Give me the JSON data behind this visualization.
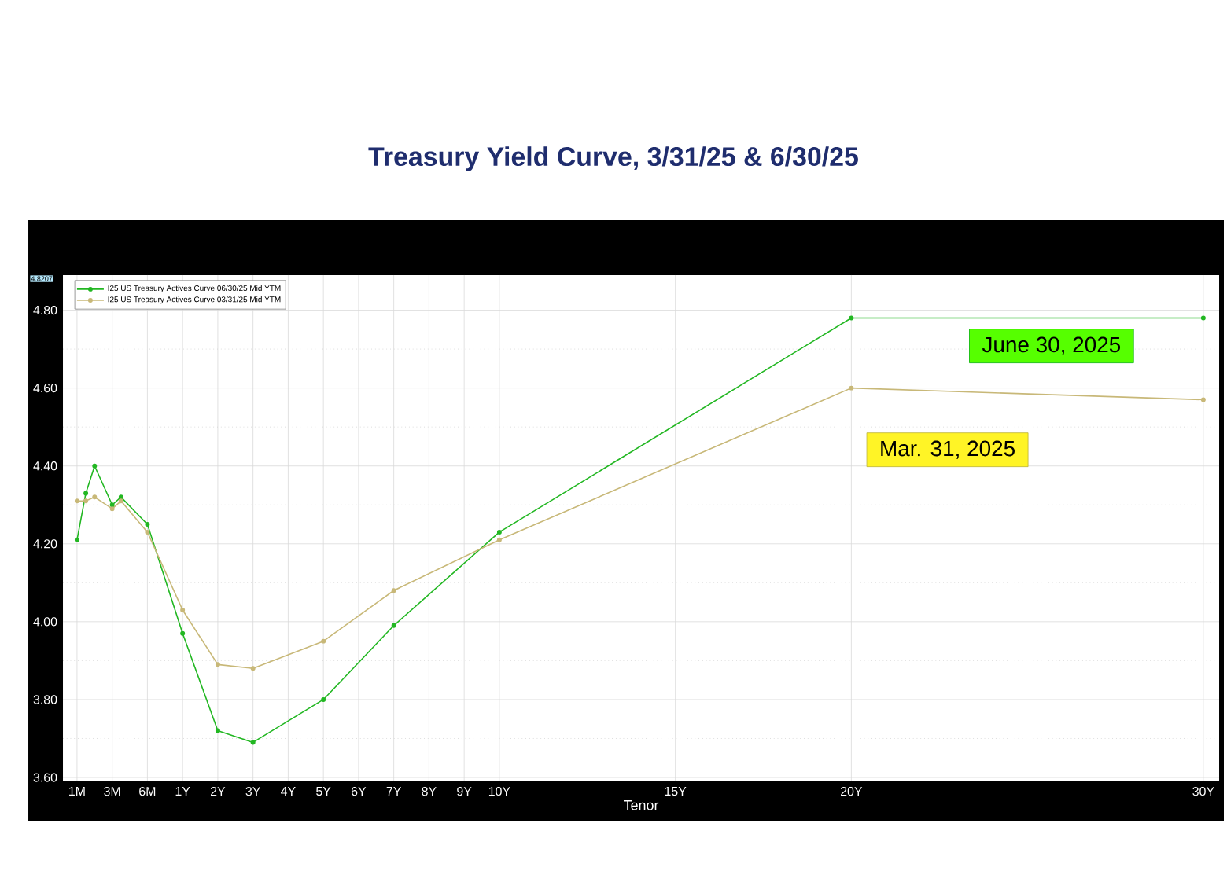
{
  "chart_data": {
    "type": "line",
    "title": "Treasury Yield Curve, 3/31/25 & 6/30/25",
    "xlabel": "Tenor",
    "categories": [
      "1M",
      null,
      null,
      null,
      "3M",
      null,
      null,
      null,
      "6M",
      null,
      null,
      null,
      "1Y",
      null,
      null,
      null,
      "2Y",
      null,
      null,
      null,
      "3Y",
      null,
      null,
      null,
      "4Y",
      null,
      null,
      null,
      "5Y",
      null,
      null,
      null,
      "6Y",
      null,
      null,
      null,
      "7Y",
      null,
      null,
      null,
      "8Y",
      null,
      null,
      null,
      "9Y",
      null,
      null,
      null,
      "10Y",
      null,
      null,
      null,
      null,
      null,
      null,
      null,
      null,
      null,
      null,
      null,
      null,
      null,
      null,
      null,
      null,
      null,
      null,
      null,
      "15Y",
      null,
      null,
      null,
      null,
      null,
      null,
      null,
      null,
      null,
      null,
      null,
      null,
      null,
      null,
      null,
      null,
      null,
      null,
      null,
      "20Y",
      null,
      null,
      null,
      null,
      null,
      null,
      null,
      null,
      null,
      null,
      null,
      null,
      null,
      null,
      null,
      null,
      null,
      null,
      null,
      null,
      null,
      null,
      null,
      null,
      null,
      null,
      null,
      null,
      null,
      null,
      null,
      null,
      null,
      null,
      null,
      null,
      null,
      null,
      null,
      "30Y"
    ],
    "series": [
      {
        "name": "I25 US Treasury Actives Curve 06/30/25 Mid YTM",
        "color": "#22b722",
        "values": [
          4.21,
          4.33,
          4.4,
          null,
          4.3,
          4.32,
          null,
          null,
          4.25,
          null,
          null,
          null,
          3.97,
          null,
          null,
          null,
          3.72,
          null,
          null,
          null,
          3.69,
          null,
          null,
          null,
          null,
          null,
          null,
          null,
          3.8,
          null,
          null,
          null,
          null,
          null,
          null,
          null,
          3.99,
          null,
          null,
          null,
          null,
          null,
          null,
          null,
          null,
          null,
          null,
          null,
          4.23,
          null,
          null,
          null,
          null,
          null,
          null,
          null,
          null,
          null,
          null,
          null,
          null,
          null,
          null,
          null,
          null,
          null,
          null,
          null,
          null,
          null,
          null,
          null,
          null,
          null,
          null,
          null,
          null,
          null,
          null,
          null,
          null,
          null,
          null,
          null,
          null,
          null,
          null,
          null,
          4.78,
          null,
          null,
          null,
          null,
          null,
          null,
          null,
          null,
          null,
          null,
          null,
          null,
          null,
          null,
          null,
          null,
          null,
          null,
          null,
          null,
          null,
          null,
          null,
          null,
          null,
          null,
          null,
          null,
          null,
          null,
          null,
          null,
          null,
          null,
          null,
          null,
          null,
          null,
          null,
          4.78
        ]
      },
      {
        "name": "I25 US Treasury Actives Curve 03/31/25 Mid YTM",
        "color": "#c8b878",
        "values": [
          4.31,
          4.31,
          4.32,
          null,
          4.29,
          4.31,
          null,
          null,
          4.23,
          null,
          null,
          null,
          4.03,
          null,
          null,
          null,
          3.89,
          null,
          null,
          null,
          3.88,
          null,
          null,
          null,
          null,
          null,
          null,
          null,
          3.95,
          null,
          null,
          null,
          null,
          null,
          null,
          null,
          4.08,
          null,
          null,
          null,
          null,
          null,
          null,
          null,
          null,
          null,
          null,
          null,
          4.21,
          null,
          null,
          null,
          null,
          null,
          null,
          null,
          null,
          null,
          null,
          null,
          null,
          null,
          null,
          null,
          null,
          null,
          null,
          null,
          null,
          null,
          null,
          null,
          null,
          null,
          null,
          null,
          null,
          null,
          null,
          null,
          null,
          null,
          null,
          null,
          null,
          null,
          null,
          null,
          4.6,
          null,
          null,
          null,
          null,
          null,
          null,
          null,
          null,
          null,
          null,
          null,
          null,
          null,
          null,
          null,
          null,
          null,
          null,
          null,
          null,
          null,
          null,
          null,
          null,
          null,
          null,
          null,
          null,
          null,
          null,
          null,
          null,
          null,
          null,
          null,
          null,
          null,
          null,
          null,
          4.57
        ]
      }
    ],
    "ylim": [
      3.59,
      4.89
    ],
    "yticks": [
      {
        "value": 3.6,
        "label": "3.60"
      },
      {
        "value": 3.8,
        "label": "3.80"
      },
      {
        "value": 4.0,
        "label": "4.00"
      },
      {
        "value": 4.2,
        "label": "4.20"
      },
      {
        "value": 4.4,
        "label": "4.40"
      },
      {
        "value": 4.6,
        "label": "4.60"
      },
      {
        "value": 4.8,
        "label": "4.80"
      }
    ],
    "grid": true,
    "legend": "top left",
    "marker": "circle",
    "line_style": "solid",
    "annotations": [
      "June 30, 2025",
      "Mar. 31, 2025",
      "4.8207"
    ]
  }
}
